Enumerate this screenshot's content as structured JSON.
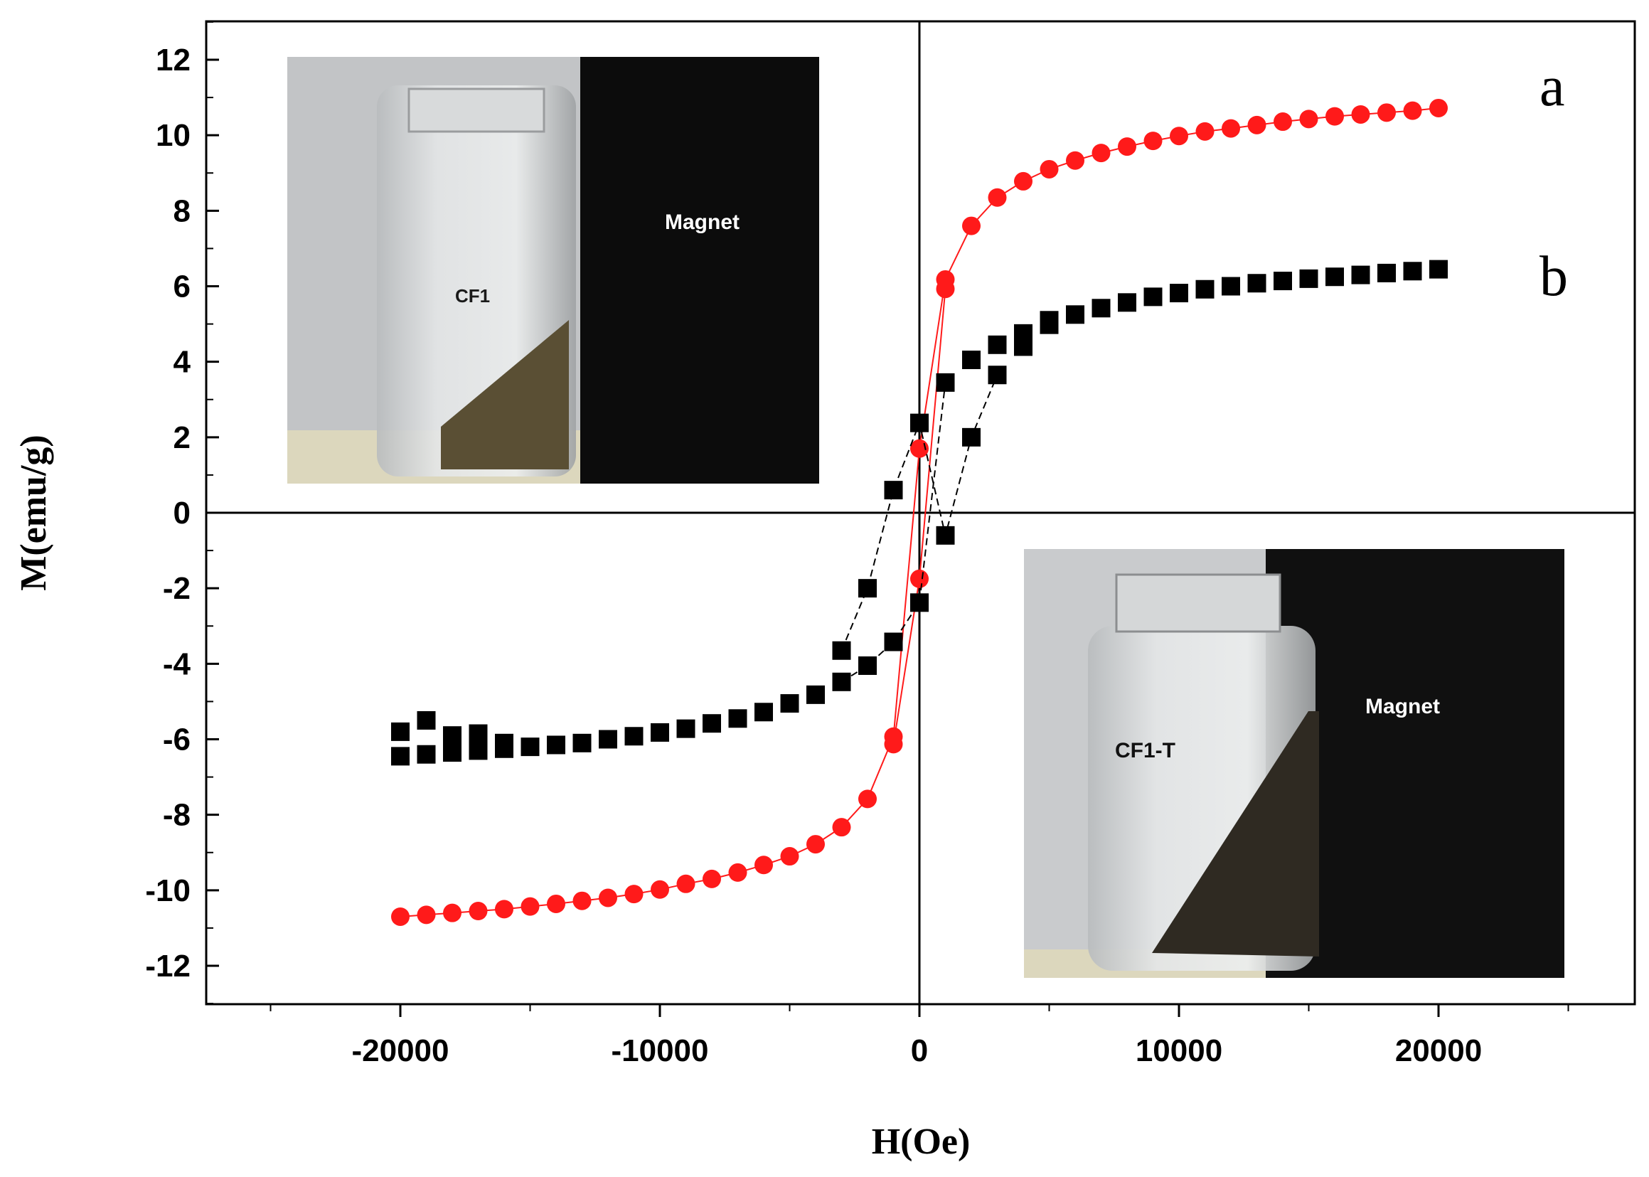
{
  "chart_data": {
    "type": "scatter",
    "title": "",
    "xlabel": "H(Oe)",
    "ylabel": "M(emu/g)",
    "xlim": [
      -25000,
      25000
    ],
    "ylim": [
      -13,
      13
    ],
    "xticks": [
      -20000,
      -10000,
      0,
      10000,
      20000
    ],
    "yticks": [
      -12,
      -10,
      -8,
      -6,
      -4,
      -2,
      0,
      2,
      4,
      6,
      8,
      10,
      12
    ],
    "grid": false,
    "legend": "none",
    "series": [
      {
        "name": "a",
        "color": "#ff1a1a",
        "marker": "circle",
        "connected": true,
        "upper": [
          [
            -20000,
            -10.7
          ],
          [
            -19000,
            -10.65
          ],
          [
            -18000,
            -10.6
          ],
          [
            -17000,
            -10.55
          ],
          [
            -16000,
            -10.5
          ],
          [
            -15000,
            -10.43
          ],
          [
            -14000,
            -10.36
          ],
          [
            -13000,
            -10.28
          ],
          [
            -12000,
            -10.2
          ],
          [
            -11000,
            -10.1
          ],
          [
            -10000,
            -9.98
          ],
          [
            -9000,
            -9.83
          ],
          [
            -8000,
            -9.7
          ],
          [
            -7000,
            -9.53
          ],
          [
            -6000,
            -9.33
          ],
          [
            -5000,
            -9.1
          ],
          [
            -4000,
            -8.78
          ],
          [
            -3000,
            -8.33
          ],
          [
            -2000,
            -7.58
          ],
          [
            -1000,
            -5.93
          ],
          [
            0,
            1.7
          ],
          [
            1000,
            6.18
          ],
          [
            2000,
            7.6
          ],
          [
            3000,
            8.35
          ],
          [
            4000,
            8.78
          ],
          [
            5000,
            9.1
          ],
          [
            6000,
            9.33
          ],
          [
            7000,
            9.53
          ],
          [
            8000,
            9.7
          ],
          [
            9000,
            9.85
          ],
          [
            10000,
            9.98
          ],
          [
            11000,
            10.1
          ],
          [
            12000,
            10.18
          ],
          [
            13000,
            10.27
          ],
          [
            14000,
            10.36
          ],
          [
            15000,
            10.43
          ],
          [
            16000,
            10.5
          ],
          [
            17000,
            10.55
          ],
          [
            18000,
            10.6
          ],
          [
            19000,
            10.65
          ],
          [
            20000,
            10.72
          ]
        ],
        "lower": [
          [
            -1000,
            -6.13
          ],
          [
            0,
            -1.75
          ],
          [
            1000,
            5.93
          ]
        ]
      },
      {
        "name": "b",
        "color": "#000000",
        "marker": "square",
        "connected": false,
        "upper": [
          [
            -20000,
            -5.8
          ],
          [
            -19000,
            -5.5
          ],
          [
            -18000,
            -5.9
          ],
          [
            -17000,
            -5.85
          ],
          [
            -16000,
            -6.1
          ],
          [
            -15000,
            -6.2
          ],
          [
            -14000,
            -6.15
          ],
          [
            -13000,
            -6.1
          ],
          [
            -12000,
            -6.0
          ],
          [
            -11000,
            -5.92
          ],
          [
            -10000,
            -5.82
          ],
          [
            -9000,
            -5.72
          ],
          [
            -8000,
            -5.58
          ],
          [
            -7000,
            -5.45
          ],
          [
            -6000,
            -5.28
          ],
          [
            -5000,
            -5.05
          ],
          [
            -4000,
            -4.82
          ],
          [
            -3000,
            -4.48
          ],
          [
            -2000,
            -4.05
          ],
          [
            -1000,
            -3.42
          ],
          [
            0,
            2.38
          ],
          [
            1000,
            3.45
          ],
          [
            2000,
            4.05
          ],
          [
            3000,
            4.45
          ],
          [
            4000,
            4.75
          ],
          [
            5000,
            4.98
          ],
          [
            6000,
            5.25
          ],
          [
            7000,
            5.42
          ],
          [
            8000,
            5.57
          ],
          [
            9000,
            5.72
          ],
          [
            10000,
            5.82
          ],
          [
            11000,
            5.92
          ],
          [
            12000,
            6.0
          ],
          [
            13000,
            6.08
          ],
          [
            14000,
            6.14
          ],
          [
            15000,
            6.2
          ],
          [
            16000,
            6.25
          ],
          [
            17000,
            6.3
          ],
          [
            18000,
            6.35
          ],
          [
            19000,
            6.4
          ],
          [
            20000,
            6.45
          ]
        ],
        "lower": [
          [
            -20000,
            -6.45
          ],
          [
            -19000,
            -6.4
          ],
          [
            -18000,
            -6.35
          ],
          [
            -17000,
            -6.3
          ],
          [
            -16000,
            -6.25
          ],
          [
            -3000,
            -3.65
          ],
          [
            -2000,
            -2.0
          ],
          [
            -1000,
            0.6
          ],
          [
            0,
            -2.38
          ],
          [
            1000,
            -0.6
          ],
          [
            2000,
            2.0
          ],
          [
            3000,
            3.65
          ],
          [
            4000,
            4.4
          ],
          [
            5000,
            5.1
          ]
        ]
      }
    ],
    "annotations": [
      "a",
      "b"
    ]
  },
  "insets": {
    "top_left": {
      "sample_label": "CF1",
      "magnet_label": "Magnet"
    },
    "bottom_right": {
      "sample_label": "CF1-T",
      "magnet_label": "Magnet"
    }
  }
}
